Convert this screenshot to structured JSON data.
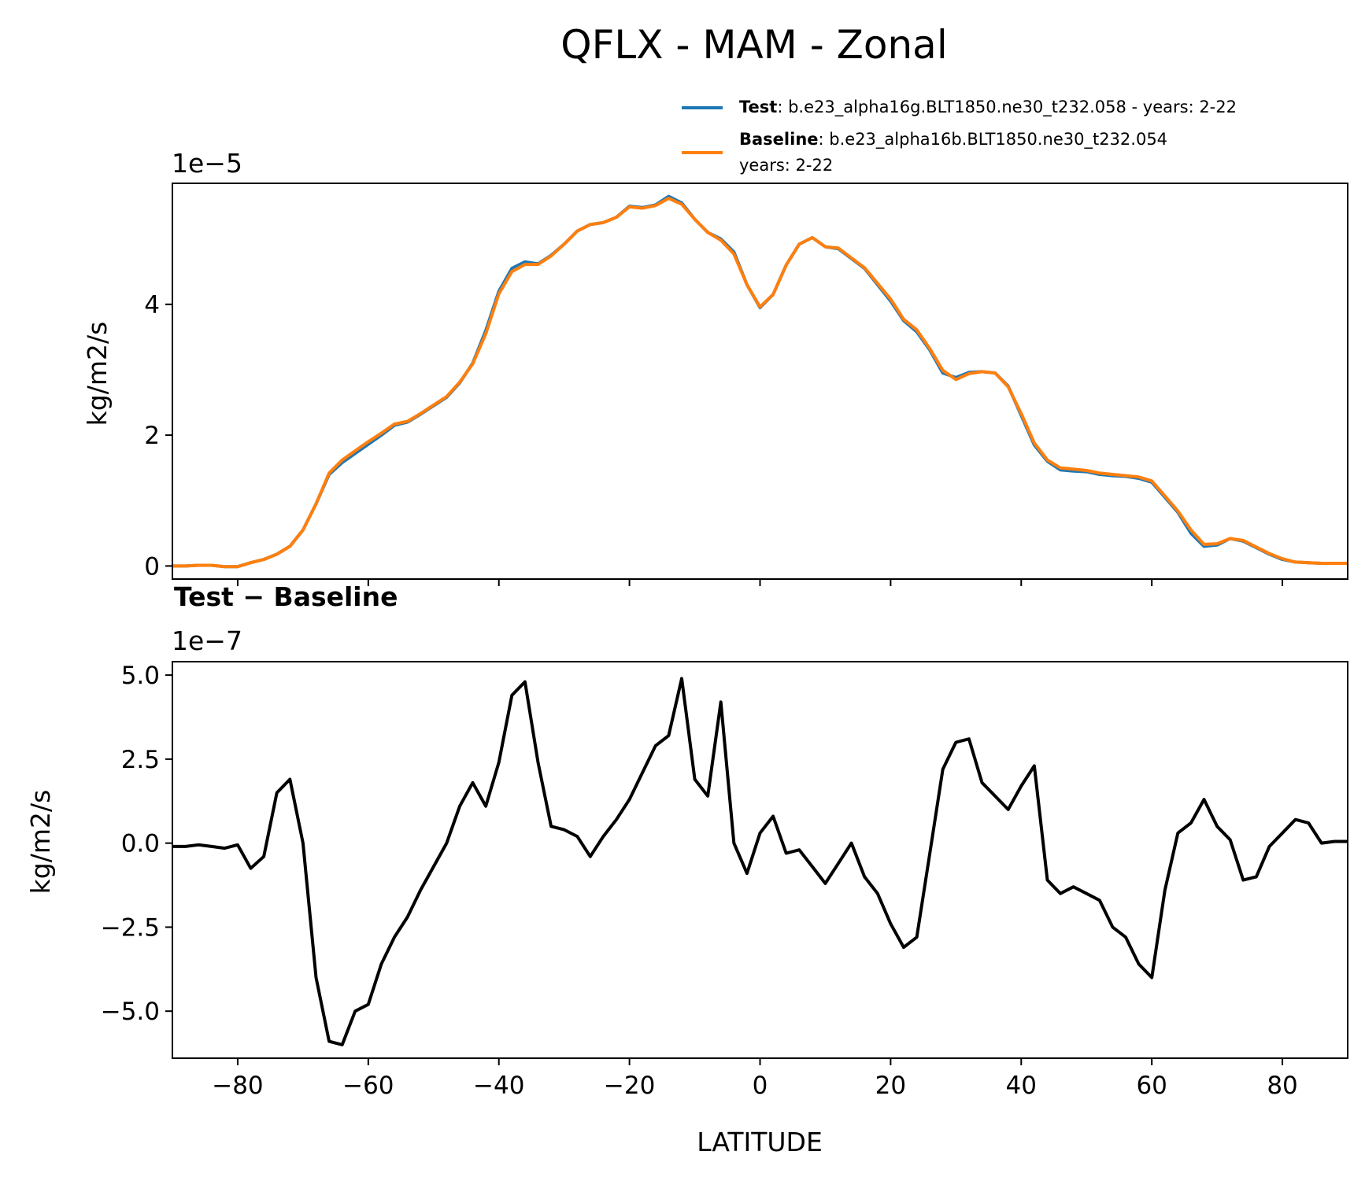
{
  "chart_data": [
    {
      "type": "line",
      "figure_title": "QFLX - MAM - Zonal",
      "title": "",
      "xlabel": "",
      "ylabel": "kg/m2/s",
      "offset_label": "1e−5",
      "scale": 1e-05,
      "xlim": [
        -90,
        90
      ],
      "ylim": [
        -0.2,
        5.85
      ],
      "yticks": [
        0,
        2,
        4
      ],
      "ytick_labels": [
        "0",
        "2",
        "4"
      ],
      "legend": {
        "placement": "top-right, above plot",
        "entries": [
          {
            "bold": "Test",
            "text": ": b.e23_alpha16g.BLT1850.ne30_t232.058 - years: 2-22",
            "text2": "",
            "color": "#1f77b4"
          },
          {
            "bold": "Baseline",
            "text": ": b.e23_alpha16b.BLT1850.ne30_t232.054",
            "text2": "years: 2-22",
            "color": "#ff7f0e"
          }
        ]
      },
      "x": [
        -90,
        -88,
        -86,
        -84,
        -82,
        -80,
        -78,
        -76,
        -74,
        -72,
        -70,
        -68,
        -66,
        -64,
        -62,
        -60,
        -58,
        -56,
        -54,
        -52,
        -50,
        -48,
        -46,
        -44,
        -42,
        -40,
        -38,
        -36,
        -34,
        -32,
        -30,
        -28,
        -26,
        -24,
        -22,
        -20,
        -18,
        -16,
        -14,
        -12,
        -10,
        -8,
        -6,
        -4,
        -2,
        0,
        2,
        4,
        6,
        8,
        10,
        12,
        14,
        16,
        18,
        20,
        22,
        24,
        26,
        28,
        30,
        32,
        34,
        36,
        38,
        40,
        42,
        44,
        46,
        48,
        50,
        52,
        54,
        56,
        58,
        60,
        62,
        64,
        66,
        68,
        70,
        72,
        74,
        76,
        78,
        80,
        82,
        84,
        86,
        88,
        90
      ],
      "series": [
        {
          "name": "Test",
          "color": "#1f77b4",
          "values": [
            0.0,
            0.0,
            0.01,
            0.01,
            -0.01,
            -0.01,
            0.05,
            0.1,
            0.18,
            0.3,
            0.55,
            0.95,
            1.4,
            1.58,
            1.72,
            1.86,
            2.0,
            2.15,
            2.2,
            2.32,
            2.45,
            2.58,
            2.8,
            3.1,
            3.6,
            4.2,
            4.55,
            4.65,
            4.62,
            4.75,
            4.92,
            5.12,
            5.22,
            5.25,
            5.33,
            5.5,
            5.48,
            5.52,
            5.65,
            5.55,
            5.3,
            5.1,
            5.0,
            4.8,
            4.3,
            3.95,
            4.15,
            4.6,
            4.92,
            5.02,
            4.88,
            4.85,
            4.7,
            4.55,
            4.3,
            4.05,
            3.75,
            3.58,
            3.3,
            2.95,
            2.88,
            2.96,
            2.97,
            2.95,
            2.75,
            2.3,
            1.85,
            1.6,
            1.47,
            1.45,
            1.44,
            1.4,
            1.38,
            1.37,
            1.34,
            1.28,
            1.05,
            0.82,
            0.5,
            0.3,
            0.32,
            0.42,
            0.38,
            0.28,
            0.18,
            0.1,
            0.06,
            0.05,
            0.04,
            0.04,
            0.04
          ]
        },
        {
          "name": "Baseline",
          "color": "#ff7f0e",
          "values": [
            0.0,
            0.0,
            0.01,
            0.01,
            -0.01,
            -0.01,
            0.05,
            0.1,
            0.18,
            0.3,
            0.55,
            0.95,
            1.42,
            1.62,
            1.76,
            1.9,
            2.03,
            2.17,
            2.21,
            2.33,
            2.46,
            2.59,
            2.81,
            3.09,
            3.55,
            4.16,
            4.5,
            4.61,
            4.61,
            4.74,
            4.92,
            5.12,
            5.22,
            5.25,
            5.33,
            5.49,
            5.47,
            5.51,
            5.62,
            5.53,
            5.3,
            5.1,
            4.98,
            4.77,
            4.3,
            3.96,
            4.15,
            4.6,
            4.92,
            5.02,
            4.88,
            4.86,
            4.71,
            4.56,
            4.32,
            4.08,
            3.77,
            3.61,
            3.32,
            2.99,
            2.85,
            2.94,
            2.97,
            2.95,
            2.74,
            2.33,
            1.88,
            1.62,
            1.5,
            1.48,
            1.46,
            1.42,
            1.4,
            1.38,
            1.36,
            1.3,
            1.07,
            0.84,
            0.55,
            0.33,
            0.34,
            0.42,
            0.39,
            0.29,
            0.19,
            0.11,
            0.06,
            0.05,
            0.04,
            0.04,
            0.04
          ]
        }
      ]
    },
    {
      "type": "line",
      "title": "Test − Baseline",
      "xlabel": "LATITUDE",
      "ylabel": "kg/m2/s",
      "offset_label": "1e−7",
      "scale": 1e-07,
      "xlim": [
        -90,
        90
      ],
      "ylim": [
        -6.4,
        5.4
      ],
      "yticks": [
        -5.0,
        -2.5,
        0.0,
        2.5,
        5.0
      ],
      "ytick_labels": [
        "−5.0",
        "−2.5",
        "0.0",
        "2.5",
        "5.0"
      ],
      "xticks": [
        -80,
        -60,
        -40,
        -20,
        0,
        20,
        40,
        60,
        80
      ],
      "xtick_labels": [
        "−80",
        "−60",
        "−40",
        "−20",
        "0",
        "20",
        "40",
        "60",
        "80"
      ],
      "x": [
        -90,
        -88,
        -86,
        -84,
        -82,
        -80,
        -78,
        -76,
        -74,
        -72,
        -70,
        -68,
        -66,
        -64,
        -62,
        -60,
        -58,
        -56,
        -54,
        -52,
        -50,
        -48,
        -46,
        -44,
        -42,
        -40,
        -38,
        -36,
        -34,
        -32,
        -30,
        -28,
        -26,
        -24,
        -22,
        -20,
        -18,
        -16,
        -14,
        -12,
        -10,
        -8,
        -6,
        -4,
        -2,
        0,
        2,
        4,
        6,
        8,
        10,
        12,
        14,
        16,
        18,
        20,
        22,
        24,
        26,
        28,
        30,
        32,
        34,
        36,
        38,
        40,
        42,
        44,
        46,
        48,
        50,
        52,
        54,
        56,
        58,
        60,
        62,
        64,
        66,
        68,
        70,
        72,
        74,
        76,
        78,
        80,
        82,
        84,
        86,
        88,
        90
      ],
      "series": [
        {
          "name": "Test − Baseline",
          "color": "#000000",
          "values": [
            -0.1,
            -0.1,
            -0.05,
            -0.1,
            -0.15,
            -0.05,
            -0.75,
            -0.4,
            1.5,
            1.9,
            0.0,
            -4.0,
            -5.9,
            -6.0,
            -5.0,
            -4.8,
            -3.6,
            -2.8,
            -2.2,
            -1.4,
            -0.7,
            0.0,
            1.1,
            1.8,
            1.1,
            2.4,
            4.4,
            4.8,
            2.4,
            0.5,
            0.4,
            0.2,
            -0.4,
            0.2,
            0.7,
            1.3,
            2.1,
            2.9,
            3.2,
            4.9,
            1.9,
            1.4,
            4.2,
            0.0,
            -0.9,
            0.3,
            0.8,
            -0.3,
            -0.2,
            -0.7,
            -1.2,
            -0.6,
            0.0,
            -1.0,
            -1.5,
            -2.4,
            -3.1,
            -2.8,
            -0.3,
            2.2,
            3.0,
            3.1,
            1.8,
            1.4,
            1.0,
            1.7,
            2.3,
            -1.1,
            -1.5,
            -1.3,
            -1.5,
            -1.7,
            -2.5,
            -2.8,
            -3.6,
            -4.0,
            -1.4,
            0.3,
            0.6,
            1.3,
            0.5,
            0.1,
            -1.1,
            -1.0,
            -0.1,
            0.3,
            0.7,
            0.6,
            0.0,
            0.05,
            0.05
          ]
        }
      ]
    }
  ]
}
